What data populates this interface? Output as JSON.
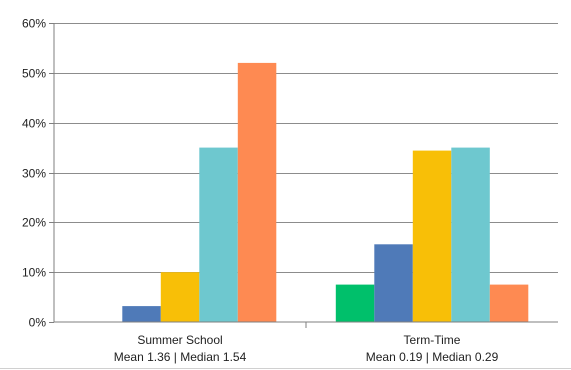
{
  "chart_data": {
    "type": "bar",
    "title": "",
    "xlabel": "",
    "ylabel": "",
    "ylim": [
      0,
      60
    ],
    "yticks": [
      "0%",
      "10%",
      "20%",
      "30%",
      "40%",
      "50%",
      "60%"
    ],
    "grid": true,
    "legend": "none",
    "categories": [
      {
        "line1": "Summer School",
        "line2": "Mean 1.36 | Median 1.54"
      },
      {
        "line1": "Term-Time",
        "line2": "Mean 0.19 | Median 0.29"
      }
    ],
    "series": [
      {
        "color": "#00c06b",
        "values": [
          0,
          7.5
        ]
      },
      {
        "color": "#4f7ab8",
        "values": [
          3.2,
          15.6
        ]
      },
      {
        "color": "#f8bf07",
        "values": [
          10,
          34.4
        ]
      },
      {
        "color": "#6ec8cf",
        "values": [
          35,
          35
        ]
      },
      {
        "color": "#fe8a52",
        "values": [
          52,
          7.5
        ]
      }
    ]
  }
}
